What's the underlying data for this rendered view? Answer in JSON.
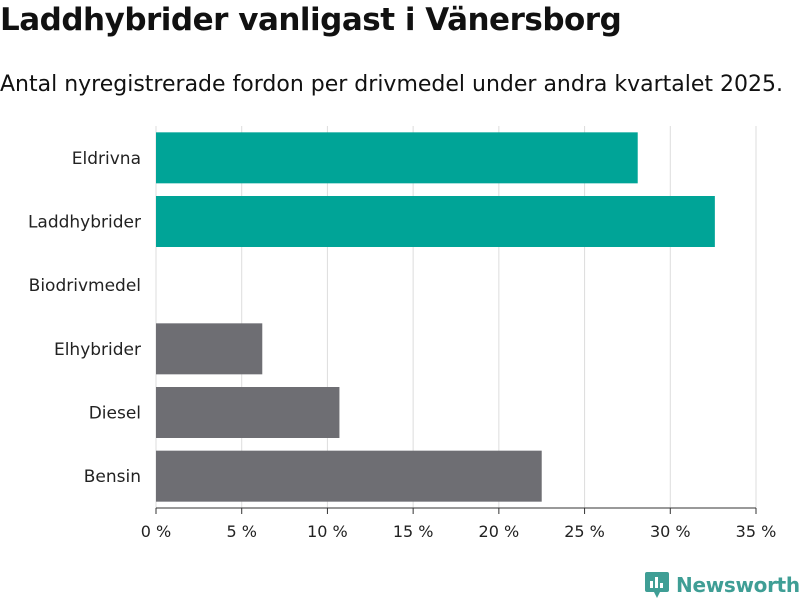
{
  "title": "Laddhybrider vanligast i Vänersborg",
  "subtitle": "Antal nyregistrerade fordon per drivmedel under andra kvartalet 2025.",
  "brand": {
    "name": "Newsworthy",
    "icon": "newsworthy-logo-icon"
  },
  "colors": {
    "electrified": "#00a497",
    "other": "#6e6e73",
    "grid": "#dddddd",
    "text": "#222222",
    "brand": "#3f9e95"
  },
  "chart_data": {
    "type": "bar",
    "orientation": "horizontal",
    "categories": [
      "Eldrivna",
      "Laddhybrider",
      "Biodrivmedel",
      "Elhybrider",
      "Diesel",
      "Bensin"
    ],
    "values": [
      28.1,
      32.6,
      0,
      6.2,
      10.7,
      22.5
    ],
    "bar_colors": [
      "#00a497",
      "#00a497",
      "#00a497",
      "#6e6e73",
      "#6e6e73",
      "#6e6e73"
    ],
    "xticks": [
      0,
      5,
      10,
      15,
      20,
      25,
      30,
      35
    ],
    "xtick_labels": [
      "0 %",
      "5 %",
      "10 %",
      "15 %",
      "20 %",
      "25 %",
      "30 %",
      "35 %"
    ],
    "xlim": [
      0,
      35
    ],
    "grid": true,
    "title": "Laddhybrider vanligast i Vänersborg",
    "xlabel": "",
    "ylabel": ""
  }
}
